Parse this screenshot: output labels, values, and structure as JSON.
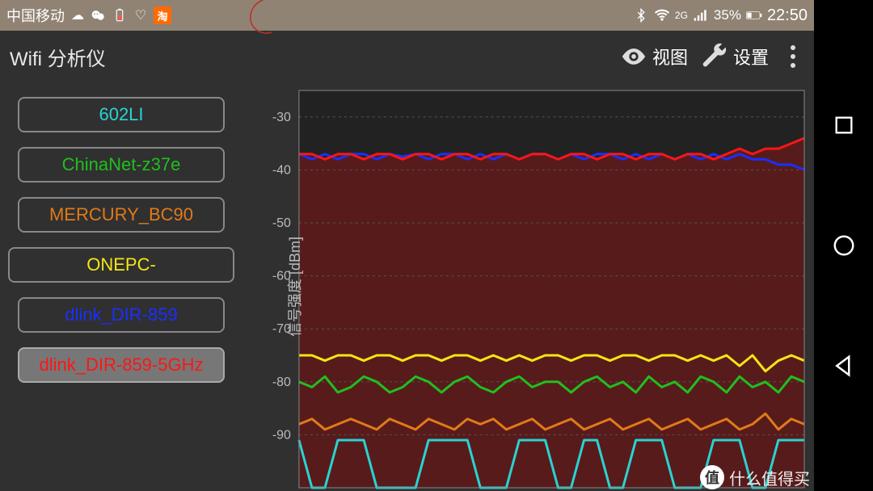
{
  "status": {
    "carrier": "中国移动",
    "signal_gen": "2G",
    "battery_percent": "35%",
    "time": "22:50",
    "statusbar_bg": "#908374"
  },
  "app": {
    "title": "Wifi 分析仪",
    "view_label": "视图",
    "settings_label": "设置",
    "bg": "#303030"
  },
  "networks": [
    {
      "ssid": "602LI",
      "color": "#29d3d3",
      "wide": false,
      "selected": false
    },
    {
      "ssid": "ChinaNet-z37e",
      "color": "#1fbf1f",
      "wide": false,
      "selected": false
    },
    {
      "ssid": "MERCURY_BC90",
      "color": "#e07a1a",
      "wide": false,
      "selected": false
    },
    {
      "ssid": "ONEPC-",
      "color": "#f5e515",
      "wide": true,
      "selected": false
    },
    {
      "ssid": "dlink_DIR-859",
      "color": "#1a2fff",
      "wide": false,
      "selected": false
    },
    {
      "ssid": "dlink_DIR-859-5GHz",
      "color": "#ff1515",
      "wide": false,
      "selected": true
    }
  ],
  "chart": {
    "type": "line",
    "y_label": "信号强度 [dBm]",
    "ylim": [
      -100,
      -25
    ],
    "yticks": [
      -30,
      -40,
      -50,
      -60,
      -70,
      -80,
      -90
    ],
    "plot_bg": "#222222",
    "grid_color": "#555555",
    "axis_text_color": "#bbbbbb",
    "axis_font_size": 16,
    "fill_series_index": 5,
    "fill_color": "#6b1a1a",
    "fill_opacity": 0.75,
    "line_width": 3,
    "x_samples": 40,
    "series": [
      {
        "name": "602LI",
        "color": "#29d3d3",
        "values": [
          -91,
          -100,
          -100,
          -91,
          -91,
          -91,
          -100,
          -100,
          -100,
          -100,
          -91,
          -91,
          -91,
          -91,
          -100,
          -100,
          -100,
          -91,
          -91,
          -91,
          -100,
          -100,
          -91,
          -91,
          -100,
          -100,
          -91,
          -91,
          -91,
          -100,
          -100,
          -100,
          -91,
          -91,
          -91,
          -100,
          -100,
          -91,
          -91,
          -91
        ]
      },
      {
        "name": "ChinaNet-z37e",
        "color": "#1fbf1f",
        "values": [
          -80,
          -81,
          -79,
          -82,
          -81,
          -79,
          -80,
          -82,
          -81,
          -79,
          -80,
          -82,
          -80,
          -79,
          -81,
          -82,
          -80,
          -79,
          -81,
          -80,
          -80,
          -82,
          -80,
          -79,
          -81,
          -80,
          -82,
          -79,
          -81,
          -80,
          -82,
          -79,
          -80,
          -82,
          -79,
          -81,
          -80,
          -82,
          -79,
          -80
        ]
      },
      {
        "name": "MERCURY_BC90",
        "color": "#e07a1a",
        "values": [
          -88,
          -87,
          -89,
          -88,
          -87,
          -88,
          -89,
          -87,
          -88,
          -89,
          -87,
          -88,
          -89,
          -87,
          -88,
          -87,
          -89,
          -88,
          -87,
          -89,
          -88,
          -87,
          -89,
          -88,
          -87,
          -89,
          -88,
          -87,
          -89,
          -88,
          -87,
          -89,
          -88,
          -87,
          -89,
          -88,
          -86,
          -89,
          -87,
          -88
        ]
      },
      {
        "name": "ONEPC-",
        "color": "#f5e515",
        "values": [
          -75,
          -75,
          -76,
          -75,
          -75,
          -76,
          -75,
          -75,
          -76,
          -75,
          -75,
          -76,
          -75,
          -75,
          -76,
          -75,
          -76,
          -75,
          -76,
          -75,
          -75,
          -76,
          -75,
          -75,
          -76,
          -75,
          -75,
          -76,
          -75,
          -75,
          -76,
          -75,
          -76,
          -75,
          -77,
          -75,
          -78,
          -76,
          -75,
          -76
        ]
      },
      {
        "name": "dlink_DIR-859",
        "color": "#1a2fff",
        "values": [
          -37,
          -38,
          -37,
          -38,
          -37,
          -37,
          -38,
          -37,
          -37.5,
          -37,
          -38,
          -37,
          -37,
          -38,
          -37,
          -38,
          -37,
          -38,
          -37,
          -37,
          -38,
          -37,
          -38,
          -37,
          -37,
          -38,
          -37,
          -38,
          -37,
          -38,
          -37,
          -38,
          -37,
          -38,
          -37,
          -38,
          -38,
          -39,
          -39,
          -40
        ]
      },
      {
        "name": "dlink_DIR-859-5GHz",
        "color": "#ff1515",
        "values": [
          -37,
          -37,
          -38,
          -37,
          -37,
          -38,
          -37,
          -37,
          -38,
          -37,
          -37,
          -38,
          -37,
          -37,
          -38,
          -37,
          -37,
          -38,
          -37,
          -37,
          -38,
          -37,
          -37,
          -38,
          -37,
          -37,
          -38,
          -37,
          -37,
          -38,
          -37,
          -37,
          -38,
          -37,
          -36,
          -37,
          -36,
          -36,
          -35,
          -34
        ]
      }
    ]
  },
  "watermark": {
    "badge": "值",
    "text": "什么值得买"
  }
}
